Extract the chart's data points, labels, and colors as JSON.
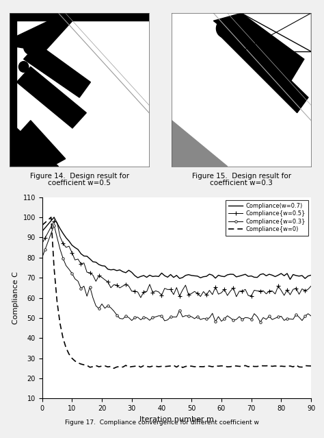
{
  "fig14_caption_line1": "Figure 14.  Design result for",
  "fig14_caption_line2": "coefficient w=0.5",
  "fig15_caption_line1": "Figure 15.  Design result for",
  "fig15_caption_line2": "coefficient w=0.3",
  "fig17_caption": "Figure 17.  Compliance convergence for different coefficient w",
  "ylabel": "Compliance C",
  "xlabel": "Iteration number m",
  "ylim": [
    10,
    110
  ],
  "xlim": [
    0,
    90
  ],
  "yticks": [
    10,
    20,
    30,
    40,
    50,
    60,
    70,
    80,
    90,
    100,
    110
  ],
  "xticks": [
    0,
    10,
    20,
    30,
    40,
    50,
    60,
    70,
    80,
    90
  ],
  "legend_entries": [
    "Compliance(w=0.7)",
    "Compliance{w=0.5}",
    "Compliance{w=0.3}",
    "Compliance{w=0)"
  ],
  "bg_color": "#f5f5f5",
  "img_bg": "#e8e8e8"
}
